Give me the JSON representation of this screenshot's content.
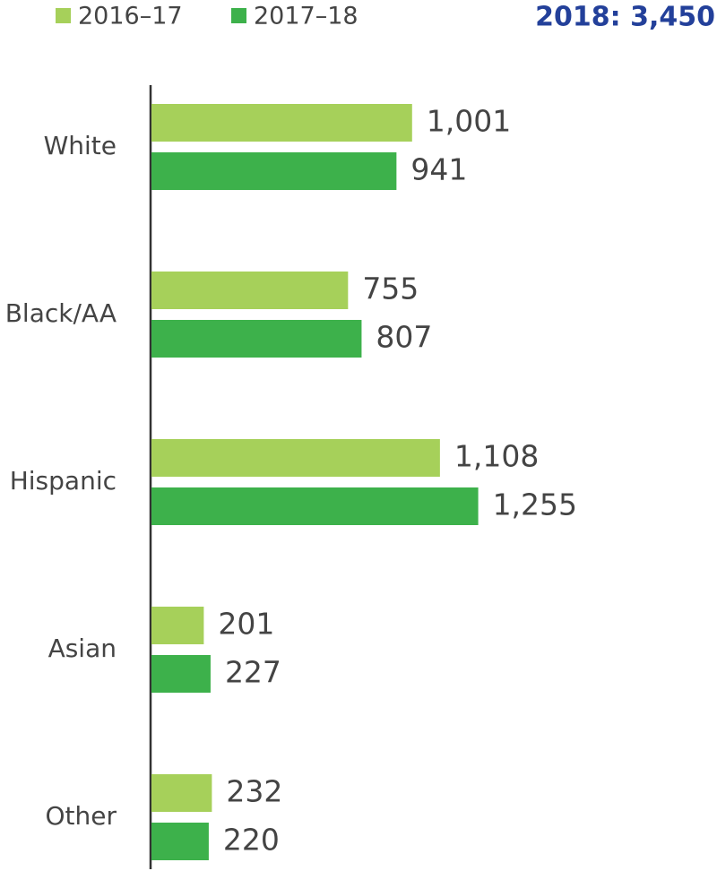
{
  "chart_data": {
    "type": "bar",
    "orientation": "horizontal",
    "title": "2018: 3,450",
    "categories": [
      "White",
      "Black/AA",
      "Hispanic",
      "Asian",
      "Other"
    ],
    "series": [
      {
        "name": "2016–17",
        "color": "#a6d05a",
        "values": [
          1001,
          755,
          1108,
          201,
          232
        ],
        "value_labels": [
          "1,001",
          "755",
          "1,108",
          "201",
          "232"
        ]
      },
      {
        "name": "2017–18",
        "color": "#3db14b",
        "values": [
          941,
          807,
          1255,
          227,
          220
        ],
        "value_labels": [
          "941",
          "807",
          "1,255",
          "227",
          "220"
        ]
      }
    ],
    "legend": "top-left"
  }
}
